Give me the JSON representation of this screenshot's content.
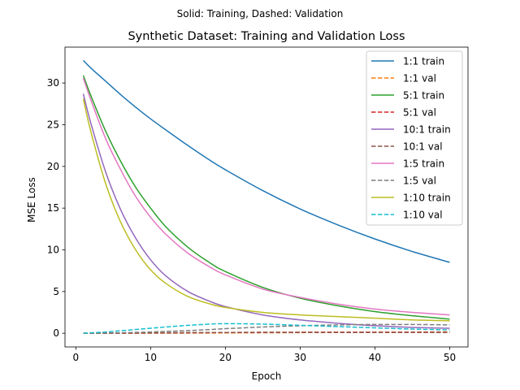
{
  "chart_data": {
    "type": "line",
    "suptitle": "Solid: Training, Dashed: Validation",
    "title": "Synthetic Dataset: Training and Validation Loss",
    "xlabel": "Epoch",
    "ylabel": "MSE Loss",
    "xlim": [
      -1.45,
      52.45
    ],
    "ylim": [
      -1.64,
      34.3
    ],
    "xticks": [
      0,
      10,
      20,
      30,
      40,
      50
    ],
    "yticks": [
      0,
      5,
      10,
      15,
      20,
      25,
      30
    ],
    "grid": false,
    "legend_position": "top-right",
    "x": [
      1,
      2,
      4,
      6,
      8,
      10,
      12,
      15,
      18,
      20,
      25,
      30,
      35,
      40,
      45,
      50
    ],
    "series": [
      {
        "name": "1:1 train",
        "color": "#1f77b4",
        "style": "solid",
        "values": [
          32.7,
          31.8,
          30.2,
          28.6,
          27.1,
          25.7,
          24.4,
          22.5,
          20.7,
          19.6,
          17.1,
          14.9,
          13.0,
          11.3,
          9.8,
          8.5
        ]
      },
      {
        "name": "1:1 val",
        "color": "#ff7f0e",
        "style": "dashed",
        "values": [
          0.0,
          0.0,
          0.0,
          0.0,
          0.0,
          0.01,
          0.01,
          0.02,
          0.03,
          0.04,
          0.06,
          0.08,
          0.1,
          0.12,
          0.14,
          0.16
        ]
      },
      {
        "name": "5:1 train",
        "color": "#2ca02c",
        "style": "solid",
        "values": [
          30.9,
          28.5,
          24.2,
          20.6,
          17.5,
          15.0,
          12.8,
          10.3,
          8.4,
          7.4,
          5.5,
          4.2,
          3.3,
          2.6,
          2.1,
          1.7
        ]
      },
      {
        "name": "5:1 val",
        "color": "#d62728",
        "style": "dashed",
        "values": [
          0.0,
          0.0,
          0.01,
          0.01,
          0.02,
          0.03,
          0.04,
          0.06,
          0.08,
          0.09,
          0.11,
          0.12,
          0.13,
          0.13,
          0.13,
          0.13
        ]
      },
      {
        "name": "10:1 train",
        "color": "#9467bd",
        "style": "solid",
        "values": [
          28.7,
          25.2,
          19.3,
          14.8,
          11.4,
          8.8,
          6.9,
          5.0,
          3.8,
          3.2,
          2.2,
          1.6,
          1.2,
          0.9,
          0.7,
          0.6
        ]
      },
      {
        "name": "10:1 val",
        "color": "#8c564b",
        "style": "dashed",
        "values": [
          0.0,
          0.0,
          0.01,
          0.02,
          0.03,
          0.04,
          0.05,
          0.07,
          0.08,
          0.09,
          0.1,
          0.1,
          0.1,
          0.1,
          0.1,
          0.1
        ]
      },
      {
        "name": "1:5 train",
        "color": "#e377c2",
        "style": "solid",
        "values": [
          30.6,
          28.0,
          23.3,
          19.6,
          16.4,
          13.9,
          11.9,
          9.6,
          7.9,
          7.0,
          5.3,
          4.3,
          3.5,
          2.9,
          2.5,
          2.2
        ]
      },
      {
        "name": "1:5 val",
        "color": "#7f7f7f",
        "style": "dashed",
        "values": [
          0.0,
          0.01,
          0.03,
          0.06,
          0.1,
          0.15,
          0.22,
          0.32,
          0.45,
          0.55,
          0.75,
          0.9,
          1.0,
          1.05,
          1.05,
          1.0
        ]
      },
      {
        "name": "1:10 train",
        "color": "#bcbd22",
        "style": "solid",
        "values": [
          28.1,
          24.2,
          17.9,
          13.3,
          10.0,
          7.6,
          6.0,
          4.4,
          3.5,
          3.1,
          2.5,
          2.2,
          2.0,
          1.8,
          1.6,
          1.5
        ]
      },
      {
        "name": "1:10 val",
        "color": "#17becf",
        "style": "dashed",
        "values": [
          0.0,
          0.05,
          0.15,
          0.3,
          0.45,
          0.6,
          0.75,
          0.95,
          1.1,
          1.15,
          1.1,
          0.95,
          0.8,
          0.65,
          0.5,
          0.4
        ]
      }
    ]
  }
}
